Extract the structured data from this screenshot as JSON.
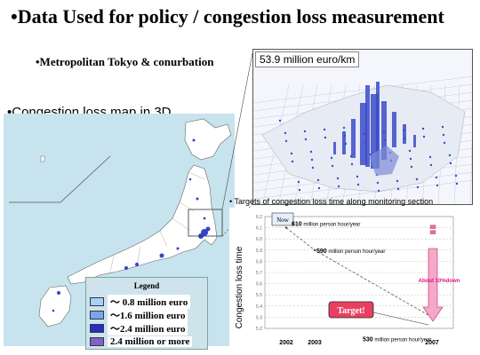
{
  "title": "•Data Used for policy / congestion loss measurement",
  "subtitle_metro": "•Metropolitan Tokyo & conurbation",
  "subtitle_map": "•Congestion loss map in 3D",
  "inset": {
    "label": "53.9 million euro/km"
  },
  "legend": {
    "title": "Legend",
    "items": [
      {
        "label": "～ 0.8 million euro",
        "color": "#a9d0f5"
      },
      {
        "label": "～1.6 million euro",
        "color": "#7aa6e6"
      },
      {
        "label": "～2.4 million euro",
        "color": "#2431b8"
      },
      {
        "label": "2.4 million or more",
        "color": "#7d63c4"
      }
    ]
  },
  "chart_data": {
    "type": "line",
    "title": "• Targets of congestion loss time along monitoring section",
    "ylabel": "Congestion loss time",
    "xlabel": "",
    "x_ticks": [
      "2002",
      "2003",
      "2007"
    ],
    "y_ticks": [
      "6.2",
      "6.1",
      "6.0",
      "5.9",
      "5.8",
      "5.7",
      "5.6",
      "5.5",
      "5.4",
      "5.3",
      "5.2"
    ],
    "ylim": [
      5.2,
      6.2
    ],
    "series": [
      {
        "points": [
          {
            "x": "2002",
            "y": 6.1
          },
          {
            "x": "2003",
            "y": 5.9
          },
          {
            "x": "2007",
            "y": 5.3
          }
        ]
      }
    ],
    "annotations": {
      "now": "Now",
      "target": "Target!",
      "down": "About 10%down",
      "p1_label_value": "610",
      "p1_label_unit": " million person hour/year",
      "p2_label_value": "590",
      "p2_label_unit": " million person hour/year",
      "p3_label_value": "530",
      "p3_label_unit": " million person hour/year"
    },
    "grid": true
  },
  "colors": {
    "map_land": "#ffffff",
    "map_sea": "#c7e3ee",
    "congestion": "#3344cc",
    "arrow": "#e86aa8",
    "target_bg": "#e84060"
  }
}
